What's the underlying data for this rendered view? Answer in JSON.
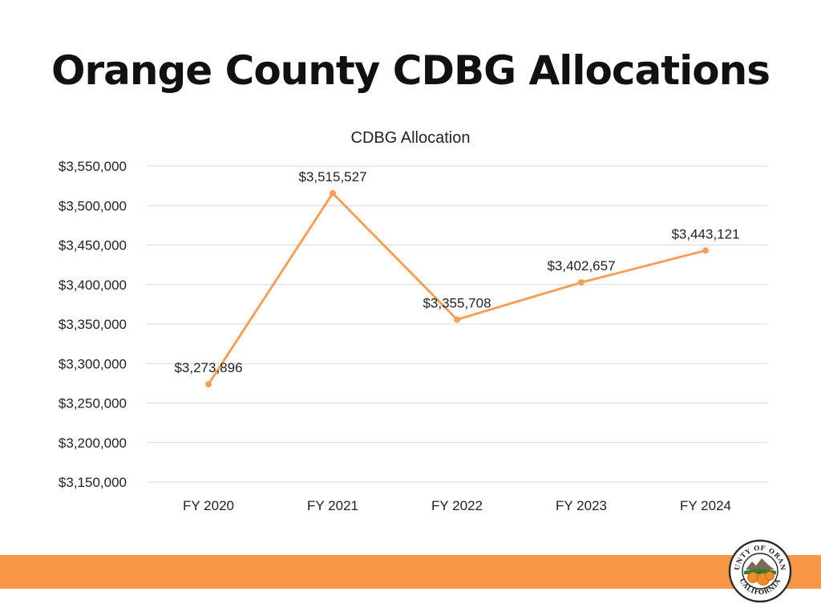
{
  "page": {
    "title": "Orange County CDBG Allocations"
  },
  "colors": {
    "line": "#F4A15C",
    "bar": "#F79646",
    "grid": "#D9D9D9"
  },
  "seal": {
    "top_text": "COUNTY OF ORANGE",
    "bottom_text": "CALIFORNIA"
  },
  "chart_data": {
    "type": "line",
    "title": "CDBG Allocation",
    "xlabel": "",
    "ylabel": "",
    "categories": [
      "FY 2020",
      "FY 2021",
      "FY 2022",
      "FY 2023",
      "FY 2024"
    ],
    "series": [
      {
        "name": "CDBG Allocation",
        "values": [
          3273896,
          3515527,
          3355708,
          3402657,
          3443121
        ],
        "labels": [
          "$3,273,896",
          "$3,515,527",
          "$3,355,708",
          "$3,402,657",
          "$3,443,121"
        ]
      }
    ],
    "ylim": [
      3150000,
      3550000
    ],
    "yticks": [
      3550000,
      3500000,
      3450000,
      3400000,
      3350000,
      3300000,
      3250000,
      3200000,
      3150000
    ],
    "ytick_labels": [
      "$3,550,000",
      "$3,500,000",
      "$3,450,000",
      "$3,400,000",
      "$3,350,000",
      "$3,300,000",
      "$3,250,000",
      "$3,200,000",
      "$3,150,000"
    ],
    "grid": true,
    "legend": "none"
  }
}
